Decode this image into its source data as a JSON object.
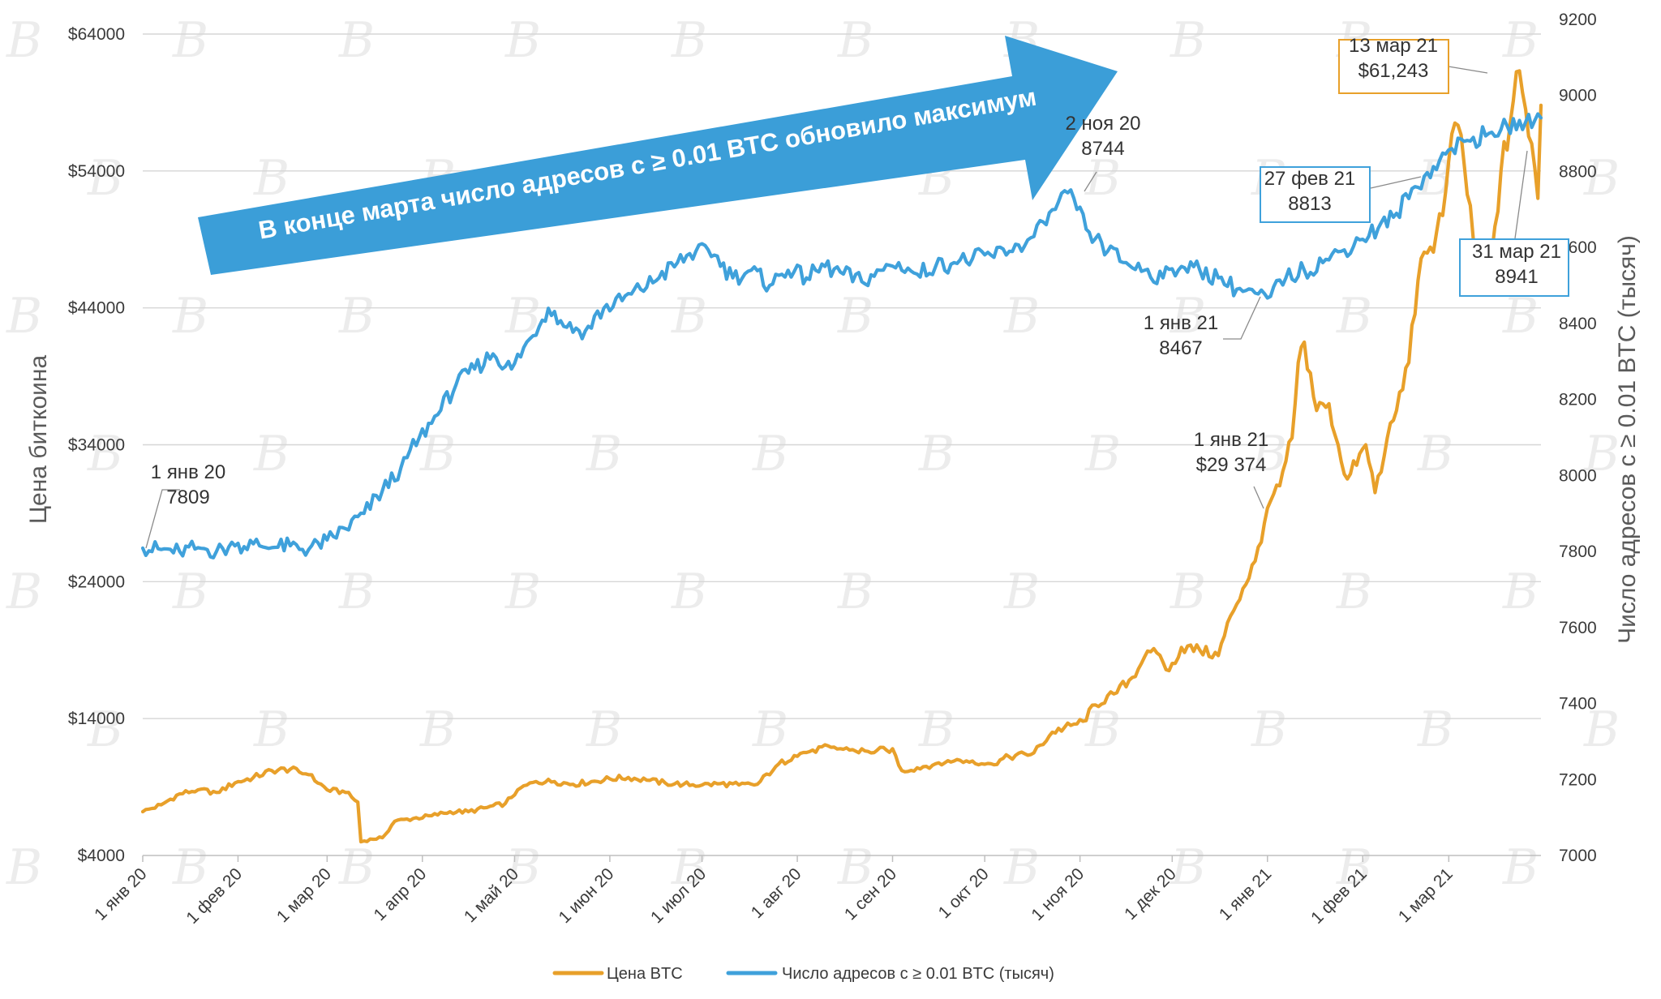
{
  "chart_data": {
    "type": "line",
    "y_left": {
      "label": "Цена биткоина",
      "lim": [
        4000,
        64000
      ],
      "ticks": [
        4000,
        14000,
        24000,
        34000,
        44000,
        54000,
        64000
      ],
      "tick_labels": [
        "$4000",
        "$14000",
        "$24000",
        "$34000",
        "$44000",
        "$54000",
        "$64000"
      ]
    },
    "y_right": {
      "label": "Число адресов с ≥ 0.01 BTC (тысяч)",
      "lim": [
        7000,
        9200
      ],
      "ticks": [
        7000,
        7200,
        7400,
        7600,
        7800,
        8000,
        8200,
        8400,
        8600,
        8800,
        9000,
        9200
      ],
      "tick_labels": [
        "7000",
        "7200",
        "7400",
        "7600",
        "7800",
        "8000",
        "8200",
        "8400",
        "8600",
        "8800",
        "9000",
        "9200"
      ]
    },
    "x": {
      "start_day": 0,
      "end_day": 455,
      "ticks": [
        {
          "day": 0,
          "label": "1 янв 20"
        },
        {
          "day": 31,
          "label": "1 фев 20"
        },
        {
          "day": 60,
          "label": "1 мар 20"
        },
        {
          "day": 91,
          "label": "1 апр 20"
        },
        {
          "day": 121,
          "label": "1 май 20"
        },
        {
          "day": 152,
          "label": "1 июн 20"
        },
        {
          "day": 182,
          "label": "1 июл 20"
        },
        {
          "day": 213,
          "label": "1 авг 20"
        },
        {
          "day": 244,
          "label": "1 сен 20"
        },
        {
          "day": 274,
          "label": "1 окт 20"
        },
        {
          "day": 305,
          "label": "1 ноя 20"
        },
        {
          "day": 335,
          "label": "1 дек 20"
        },
        {
          "day": 366,
          "label": "1 янв 21"
        },
        {
          "day": 397,
          "label": "1 фев 21"
        },
        {
          "day": 425,
          "label": "1 мар 21"
        }
      ]
    },
    "series": [
      {
        "name": "Цена BTC",
        "axis": "left",
        "color": "#E8A02A",
        "points": [
          [
            0,
            7200
          ],
          [
            6,
            7700
          ],
          [
            12,
            8500
          ],
          [
            18,
            8800
          ],
          [
            24,
            8600
          ],
          [
            30,
            9300
          ],
          [
            36,
            9700
          ],
          [
            42,
            10200
          ],
          [
            48,
            10300
          ],
          [
            54,
            9900
          ],
          [
            60,
            8800
          ],
          [
            66,
            8600
          ],
          [
            70,
            7900
          ],
          [
            71,
            5000
          ],
          [
            74,
            5200
          ],
          [
            78,
            5300
          ],
          [
            82,
            6500
          ],
          [
            88,
            6700
          ],
          [
            94,
            6900
          ],
          [
            100,
            7200
          ],
          [
            106,
            7200
          ],
          [
            112,
            7500
          ],
          [
            118,
            7800
          ],
          [
            122,
            8800
          ],
          [
            128,
            9400
          ],
          [
            134,
            9400
          ],
          [
            140,
            9200
          ],
          [
            146,
            9400
          ],
          [
            152,
            9600
          ],
          [
            158,
            9700
          ],
          [
            164,
            9500
          ],
          [
            170,
            9300
          ],
          [
            176,
            9200
          ],
          [
            182,
            9150
          ],
          [
            188,
            9250
          ],
          [
            194,
            9150
          ],
          [
            200,
            9200
          ],
          [
            206,
            10500
          ],
          [
            212,
            11300
          ],
          [
            218,
            11700
          ],
          [
            224,
            11900
          ],
          [
            230,
            11700
          ],
          [
            236,
            11600
          ],
          [
            242,
            11700
          ],
          [
            244,
            11800
          ],
          [
            247,
            10200
          ],
          [
            252,
            10400
          ],
          [
            258,
            10700
          ],
          [
            264,
            10900
          ],
          [
            270,
            10900
          ],
          [
            276,
            10700
          ],
          [
            282,
            11200
          ],
          [
            290,
            11500
          ],
          [
            296,
            13000
          ],
          [
            302,
            13500
          ],
          [
            306,
            13800
          ],
          [
            310,
            15000
          ],
          [
            316,
            15800
          ],
          [
            322,
            17000
          ],
          [
            326,
            18500
          ],
          [
            330,
            18800
          ],
          [
            334,
            17500
          ],
          [
            338,
            19200
          ],
          [
            344,
            19000
          ],
          [
            350,
            18600
          ],
          [
            354,
            21500
          ],
          [
            358,
            23500
          ],
          [
            362,
            25500
          ],
          [
            366,
            29374
          ],
          [
            370,
            31000
          ],
          [
            374,
            34500
          ],
          [
            376,
            40000
          ],
          [
            378,
            41500
          ],
          [
            382,
            36500
          ],
          [
            386,
            37000
          ],
          [
            389,
            34000
          ],
          [
            392,
            31500
          ],
          [
            395,
            32500
          ],
          [
            398,
            34000
          ],
          [
            401,
            30500
          ],
          [
            404,
            33200
          ],
          [
            408,
            36500
          ],
          [
            412,
            40000
          ],
          [
            415,
            46000
          ],
          [
            418,
            48000
          ],
          [
            421,
            49500
          ],
          [
            424,
            52500
          ],
          [
            427,
            57500
          ],
          [
            430,
            54500
          ],
          [
            433,
            49000
          ],
          [
            436,
            46000
          ],
          [
            439,
            48000
          ],
          [
            442,
            54000
          ],
          [
            445,
            57500
          ],
          [
            447,
            61243
          ],
          [
            450,
            58500
          ],
          [
            452,
            56000
          ],
          [
            454,
            52000
          ],
          [
            455,
            58800
          ]
        ]
      },
      {
        "name": "Число адресов с ≥ 0.01 BTC (тысяч)",
        "axis": "right",
        "color": "#3FA1DB",
        "points": [
          [
            0,
            7809
          ],
          [
            6,
            7805
          ],
          [
            12,
            7800
          ],
          [
            18,
            7810
          ],
          [
            24,
            7800
          ],
          [
            30,
            7815
          ],
          [
            36,
            7820
          ],
          [
            42,
            7810
          ],
          [
            48,
            7815
          ],
          [
            54,
            7805
          ],
          [
            60,
            7830
          ],
          [
            66,
            7860
          ],
          [
            72,
            7900
          ],
          [
            78,
            7960
          ],
          [
            84,
            8020
          ],
          [
            90,
            8100
          ],
          [
            96,
            8160
          ],
          [
            102,
            8240
          ],
          [
            108,
            8280
          ],
          [
            114,
            8320
          ],
          [
            120,
            8280
          ],
          [
            126,
            8360
          ],
          [
            132,
            8440
          ],
          [
            138,
            8390
          ],
          [
            144,
            8380
          ],
          [
            150,
            8440
          ],
          [
            156,
            8460
          ],
          [
            162,
            8490
          ],
          [
            168,
            8520
          ],
          [
            174,
            8560
          ],
          [
            180,
            8590
          ],
          [
            186,
            8580
          ],
          [
            192,
            8520
          ],
          [
            198,
            8540
          ],
          [
            204,
            8500
          ],
          [
            210,
            8540
          ],
          [
            216,
            8520
          ],
          [
            222,
            8550
          ],
          [
            228,
            8530
          ],
          [
            234,
            8510
          ],
          [
            240,
            8540
          ],
          [
            246,
            8560
          ],
          [
            252,
            8530
          ],
          [
            258,
            8550
          ],
          [
            264,
            8560
          ],
          [
            270,
            8570
          ],
          [
            276,
            8580
          ],
          [
            282,
            8590
          ],
          [
            288,
            8620
          ],
          [
            294,
            8660
          ],
          [
            298,
            8720
          ],
          [
            301,
            8744
          ],
          [
            304,
            8700
          ],
          [
            308,
            8640
          ],
          [
            314,
            8590
          ],
          [
            320,
            8560
          ],
          [
            326,
            8540
          ],
          [
            332,
            8520
          ],
          [
            338,
            8550
          ],
          [
            344,
            8540
          ],
          [
            350,
            8520
          ],
          [
            356,
            8490
          ],
          [
            362,
            8480
          ],
          [
            366,
            8467
          ],
          [
            372,
            8520
          ],
          [
            378,
            8540
          ],
          [
            384,
            8560
          ],
          [
            390,
            8590
          ],
          [
            396,
            8620
          ],
          [
            402,
            8650
          ],
          [
            408,
            8690
          ],
          [
            414,
            8760
          ],
          [
            420,
            8813
          ],
          [
            426,
            8860
          ],
          [
            432,
            8880
          ],
          [
            438,
            8900
          ],
          [
            444,
            8920
          ],
          [
            450,
            8930
          ],
          [
            455,
            8941
          ]
        ]
      }
    ],
    "annotations": [
      {
        "id": "addr-jan20",
        "lines": [
          "1 янв 20",
          "7809"
        ],
        "series": 1,
        "day": 0,
        "boxed": false
      },
      {
        "id": "addr-nov20",
        "lines": [
          "2 ноя 20",
          "8744"
        ],
        "series": 1,
        "day": 301,
        "boxed": false
      },
      {
        "id": "addr-jan21",
        "lines": [
          "1 янв 21",
          "8467"
        ],
        "series": 1,
        "day": 366,
        "boxed": false
      },
      {
        "id": "price-jan21",
        "lines": [
          "1 янв 21",
          "$29 374"
        ],
        "series": 0,
        "day": 366,
        "boxed": false
      },
      {
        "id": "price-mar13",
        "lines": [
          "13 мар 21",
          "$61,243"
        ],
        "series": 0,
        "day": 447,
        "boxed": true,
        "box_color": "#E8A02A"
      },
      {
        "id": "addr-feb27",
        "lines": [
          "27 фев 21",
          "8813"
        ],
        "series": 1,
        "day": 420,
        "boxed": true,
        "box_color": "#3FA1DB"
      },
      {
        "id": "addr-mar31",
        "lines": [
          "31 мар 21",
          "8941"
        ],
        "series": 1,
        "day": 455,
        "boxed": true,
        "box_color": "#3FA1DB"
      }
    ],
    "callout_arrow": {
      "text": "В конце марта число адресов с ≥ 0.01 BTC обновило максимум",
      "color": "#3B9ED8"
    },
    "legend": [
      {
        "label": "Цена BTC",
        "color": "#E8A02A"
      },
      {
        "label": "Число адресов с ≥ 0.01 BTC (тысяч)",
        "color": "#3FA1DB"
      }
    ]
  },
  "watermark": {
    "glyph": "B"
  }
}
